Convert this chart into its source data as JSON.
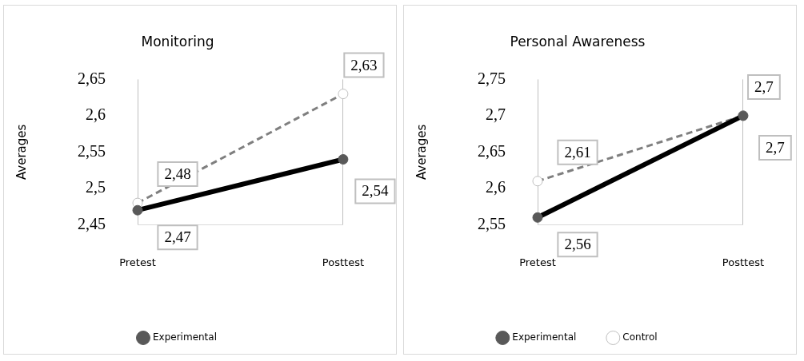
{
  "chart_data": [
    {
      "type": "line",
      "title": "Monitoring",
      "ylabel": "Averages",
      "categories": [
        "Pretest",
        "Posttest"
      ],
      "series": [
        {
          "name": "Experimental",
          "color": "#000000",
          "values": [
            2.47,
            2.54
          ],
          "value_labels": [
            "2,47",
            "2,54"
          ],
          "line_style": "solid"
        },
        {
          "color": "#7f7f7f",
          "values": [
            2.48,
            2.63
          ],
          "value_labels": [
            "2,48",
            "2,63"
          ],
          "line_style": "dashed"
        }
      ],
      "ylim": [
        2.45,
        2.65
      ],
      "yticks": [
        {
          "value": 2.45,
          "label": "2,45"
        },
        {
          "value": 2.5,
          "label": "2,5"
        },
        {
          "value": 2.55,
          "label": "2,55"
        },
        {
          "value": 2.6,
          "label": "2,6"
        },
        {
          "value": 2.65,
          "label": "2,65"
        }
      ],
      "grid": "x",
      "legend": "bottom",
      "marker": "circle"
    },
    {
      "type": "line",
      "title": "Personal Awareness",
      "ylabel": "Averages",
      "categories": [
        "Pretest",
        "Posttest"
      ],
      "series": [
        {
          "name": "Experimental",
          "color": "#000000",
          "values": [
            2.56,
            2.7
          ],
          "value_labels": [
            "2,56",
            "2,7"
          ],
          "line_style": "solid"
        },
        {
          "name": "Control",
          "color": "#7f7f7f",
          "values": [
            2.61,
            2.7
          ],
          "value_labels": [
            "2,61",
            "2,7"
          ],
          "line_style": "dashed"
        }
      ],
      "ylim": [
        2.55,
        2.75
      ],
      "yticks": [
        {
          "value": 2.55,
          "label": "2,55"
        },
        {
          "value": 2.6,
          "label": "2,6"
        },
        {
          "value": 2.65,
          "label": "2,65"
        },
        {
          "value": 2.7,
          "label": "2,7"
        },
        {
          "value": 2.75,
          "label": "2,75"
        }
      ],
      "grid": "x",
      "legend": "bottom",
      "marker": "circle"
    }
  ]
}
